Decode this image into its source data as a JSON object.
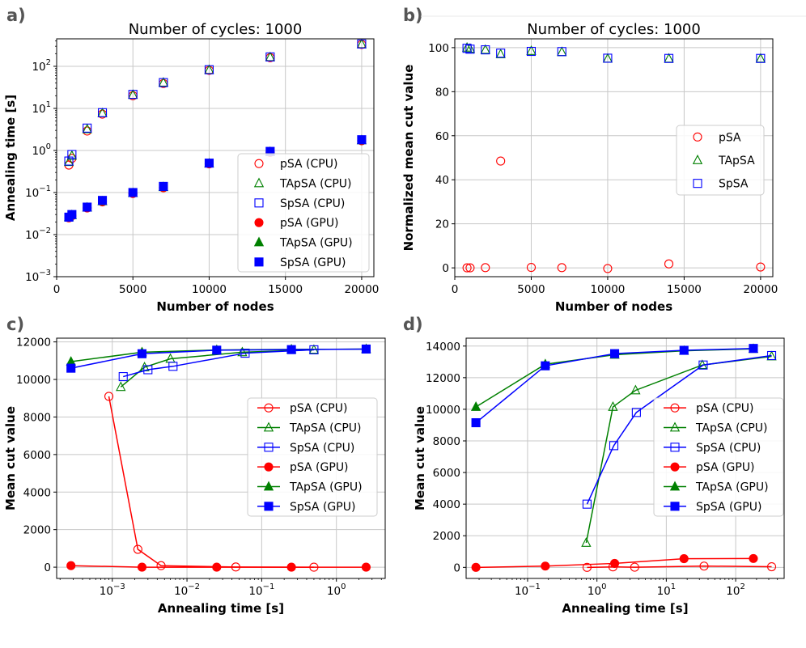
{
  "chart_data": [
    {
      "id": "a",
      "panel_label": "a)",
      "type": "scatter",
      "title": "Number of cycles: 1000",
      "xlabel": "Number of nodes",
      "ylabel": "Annealing time [s]",
      "xscale": "linear",
      "yscale": "log",
      "xlim": [
        0,
        20800
      ],
      "ylim": [
        0.001,
        450
      ],
      "xticks": [
        0,
        5000,
        10000,
        15000,
        20000
      ],
      "xtick_labels": [
        "0",
        "5000",
        "10000",
        "15000",
        "20000"
      ],
      "yticks": [
        0.001,
        0.01,
        0.1,
        1,
        10,
        100
      ],
      "ytick_labels": [
        [
          "10",
          "−3"
        ],
        [
          "10",
          "−2"
        ],
        [
          "10",
          "−1"
        ],
        [
          "10",
          "0"
        ],
        [
          "10",
          "1"
        ],
        [
          "10",
          "2"
        ]
      ],
      "grid": true,
      "legend": "lower-right",
      "series": [
        {
          "name": "pSA (CPU)",
          "color": "#ff0000",
          "marker": "circle",
          "filled": false,
          "line": false,
          "x": [
            800,
            1000,
            2000,
            3000,
            5000,
            7000,
            10000,
            14000,
            20000
          ],
          "y": [
            0.45,
            0.65,
            2.9,
            7.3,
            20,
            39,
            80,
            160,
            330
          ]
        },
        {
          "name": "TApSA (CPU)",
          "color": "#008000",
          "marker": "triangle",
          "filled": false,
          "line": false,
          "x": [
            800,
            1000,
            2000,
            3000,
            5000,
            7000,
            10000,
            14000,
            20000
          ],
          "y": [
            0.53,
            0.75,
            3.2,
            7.7,
            21,
            41,
            82,
            165,
            335
          ]
        },
        {
          "name": "SpSA (CPU)",
          "color": "#0000ff",
          "marker": "square",
          "filled": false,
          "line": false,
          "x": [
            800,
            1000,
            2000,
            3000,
            5000,
            7000,
            10000,
            14000,
            20000
          ],
          "y": [
            0.56,
            0.8,
            3.4,
            7.9,
            21.5,
            41,
            83,
            167,
            340
          ]
        },
        {
          "name": "pSA (GPU)",
          "color": "#ff0000",
          "marker": "circle",
          "filled": true,
          "line": false,
          "x": [
            800,
            1000,
            2000,
            3000,
            5000,
            7000,
            10000,
            14000,
            20000
          ],
          "y": [
            0.025,
            0.028,
            0.043,
            0.06,
            0.095,
            0.13,
            0.48,
            0.9,
            1.7
          ]
        },
        {
          "name": "TApSA (GPU)",
          "color": "#008000",
          "marker": "triangle",
          "filled": true,
          "line": false,
          "x": [
            800,
            1000,
            2000,
            3000,
            5000,
            7000,
            10000,
            14000,
            20000
          ],
          "y": [
            0.026,
            0.029,
            0.044,
            0.062,
            0.097,
            0.135,
            0.49,
            0.92,
            1.75
          ]
        },
        {
          "name": "SpSA (GPU)",
          "color": "#0000ff",
          "marker": "square",
          "filled": true,
          "line": false,
          "x": [
            800,
            1000,
            2000,
            3000,
            5000,
            7000,
            10000,
            14000,
            20000
          ],
          "y": [
            0.026,
            0.03,
            0.045,
            0.065,
            0.1,
            0.14,
            0.5,
            0.95,
            1.8
          ]
        }
      ]
    },
    {
      "id": "b",
      "panel_label": "b)",
      "type": "scatter",
      "title": "Number of cycles: 1000",
      "xlabel": "Number of nodes",
      "ylabel": "Normalized mean cut value",
      "xscale": "linear",
      "yscale": "linear",
      "xlim": [
        0,
        20800
      ],
      "ylim": [
        -4,
        104
      ],
      "xticks": [
        0,
        5000,
        10000,
        15000,
        20000
      ],
      "xtick_labels": [
        "0",
        "5000",
        "10000",
        "15000",
        "20000"
      ],
      "yticks": [
        0,
        20,
        40,
        60,
        80,
        100
      ],
      "ytick_labels": [
        "0",
        "20",
        "40",
        "60",
        "80",
        "100"
      ],
      "grid": true,
      "legend": "center-right",
      "series": [
        {
          "name": "pSA",
          "color": "#ff0000",
          "marker": "circle",
          "filled": false,
          "line": false,
          "x": [
            800,
            1000,
            2000,
            3000,
            5000,
            7000,
            10000,
            14000,
            20000
          ],
          "y": [
            0,
            0,
            0.1,
            48.5,
            0.2,
            0.1,
            -0.3,
            1.8,
            0.4
          ]
        },
        {
          "name": "TApSA",
          "color": "#008000",
          "marker": "triangle",
          "filled": false,
          "line": false,
          "x": [
            800,
            1000,
            2000,
            3000,
            5000,
            7000,
            10000,
            14000,
            20000
          ],
          "y": [
            100,
            99.5,
            99,
            97,
            98.5,
            98,
            95,
            95,
            95
          ]
        },
        {
          "name": "SpSA",
          "color": "#0000ff",
          "marker": "square",
          "filled": false,
          "line": false,
          "x": [
            800,
            1000,
            2000,
            3000,
            5000,
            7000,
            10000,
            14000,
            20000
          ],
          "y": [
            99.7,
            99.3,
            99,
            97.5,
            98.3,
            98.2,
            95.2,
            95.1,
            95.1
          ]
        }
      ]
    },
    {
      "id": "c",
      "panel_label": "c)",
      "type": "line",
      "title": "",
      "xlabel": "Annealing time [s]",
      "ylabel": "Mean cut value",
      "xscale": "log",
      "yscale": "linear",
      "xlim": [
        0.00018,
        4.5
      ],
      "ylim": [
        -600,
        12200
      ],
      "xticks": [
        0.001,
        0.01,
        0.1,
        1
      ],
      "xtick_labels": [
        [
          "10",
          "−3"
        ],
        [
          "10",
          "−2"
        ],
        [
          "10",
          "−1"
        ],
        [
          "10",
          "0"
        ]
      ],
      "yticks": [
        0,
        2000,
        4000,
        6000,
        8000,
        10000,
        12000
      ],
      "ytick_labels": [
        "0",
        "2000",
        "4000",
        "6000",
        "8000",
        "10000",
        "12000"
      ],
      "grid": true,
      "legend": "center-right",
      "series": [
        {
          "name": "pSA (CPU)",
          "color": "#ff0000",
          "marker": "circle",
          "filled": false,
          "line": true,
          "x": [
            0.0009,
            0.0022,
            0.0045,
            0.045,
            0.5
          ],
          "y": [
            9100,
            950,
            80,
            10,
            0
          ]
        },
        {
          "name": "TApSA (CPU)",
          "color": "#008000",
          "marker": "triangle",
          "filled": false,
          "line": true,
          "x": [
            0.0013,
            0.0027,
            0.006,
            0.055,
            0.5
          ],
          "y": [
            9600,
            10650,
            11100,
            11450,
            11580
          ]
        },
        {
          "name": "SpSA (CPU)",
          "color": "#0000ff",
          "marker": "square",
          "filled": false,
          "line": true,
          "x": [
            0.0014,
            0.003,
            0.0065,
            0.06,
            0.5
          ],
          "y": [
            10150,
            10520,
            10700,
            11400,
            11580
          ]
        },
        {
          "name": "pSA (GPU)",
          "color": "#ff0000",
          "marker": "circle",
          "filled": true,
          "line": true,
          "x": [
            0.00028,
            0.0025,
            0.025,
            0.25,
            2.5
          ],
          "y": [
            80,
            0,
            0,
            0,
            0
          ]
        },
        {
          "name": "TApSA (GPU)",
          "color": "#008000",
          "marker": "triangle",
          "filled": true,
          "line": true,
          "x": [
            0.00028,
            0.0025,
            0.025,
            0.25,
            2.5
          ],
          "y": [
            10950,
            11450,
            11570,
            11600,
            11620
          ]
        },
        {
          "name": "SpSA (GPU)",
          "color": "#0000ff",
          "marker": "square",
          "filled": true,
          "line": true,
          "x": [
            0.00028,
            0.0025,
            0.025,
            0.25,
            2.5
          ],
          "y": [
            10600,
            11370,
            11560,
            11590,
            11620
          ]
        }
      ]
    },
    {
      "id": "d",
      "panel_label": "d)",
      "type": "line",
      "title": "",
      "xlabel": "Annealing time [s]",
      "ylabel": "Mean cut value",
      "xscale": "log",
      "yscale": "linear",
      "xlim": [
        0.013,
        500
      ],
      "ylim": [
        -700,
        14500
      ],
      "xticks": [
        0.1,
        1,
        10,
        100
      ],
      "xtick_labels": [
        [
          "10",
          "−1"
        ],
        [
          "10",
          "0"
        ],
        [
          "10",
          "1"
        ],
        [
          "10",
          "2"
        ]
      ],
      "yticks": [
        0,
        2000,
        4000,
        6000,
        8000,
        10000,
        12000,
        14000
      ],
      "ytick_labels": [
        "0",
        "2000",
        "4000",
        "6000",
        "8000",
        "10000",
        "12000",
        "14000"
      ],
      "grid": true,
      "legend": "center-right",
      "series": [
        {
          "name": "pSA (CPU)",
          "color": "#ff0000",
          "marker": "circle",
          "filled": false,
          "line": true,
          "x": [
            0.72,
            1.7,
            3.5,
            35,
            330
          ],
          "y": [
            0,
            30,
            10,
            80,
            40
          ]
        },
        {
          "name": "TApSA (CPU)",
          "color": "#008000",
          "marker": "triangle",
          "filled": false,
          "line": true,
          "x": [
            0.7,
            1.7,
            3.6,
            33,
            330
          ],
          "y": [
            1550,
            10150,
            11200,
            12800,
            13350
          ]
        },
        {
          "name": "SpSA (CPU)",
          "color": "#0000ff",
          "marker": "square",
          "filled": false,
          "line": true,
          "x": [
            0.72,
            1.75,
            3.7,
            34,
            330
          ],
          "y": [
            4000,
            7700,
            9800,
            12800,
            13400
          ]
        },
        {
          "name": "pSA (GPU)",
          "color": "#ff0000",
          "marker": "circle",
          "filled": true,
          "line": true,
          "x": [
            0.018,
            0.18,
            1.8,
            18,
            180
          ],
          "y": [
            0,
            80,
            250,
            550,
            560
          ]
        },
        {
          "name": "TApSA (GPU)",
          "color": "#008000",
          "marker": "triangle",
          "filled": true,
          "line": true,
          "x": [
            0.018,
            0.18,
            1.8,
            18,
            180
          ],
          "y": [
            10150,
            12850,
            13450,
            13700,
            13820
          ]
        },
        {
          "name": "SpSA (GPU)",
          "color": "#0000ff",
          "marker": "square",
          "filled": true,
          "line": true,
          "x": [
            0.018,
            0.18,
            1.8,
            18,
            180
          ],
          "y": [
            9150,
            12750,
            13520,
            13730,
            13850
          ]
        }
      ]
    }
  ]
}
